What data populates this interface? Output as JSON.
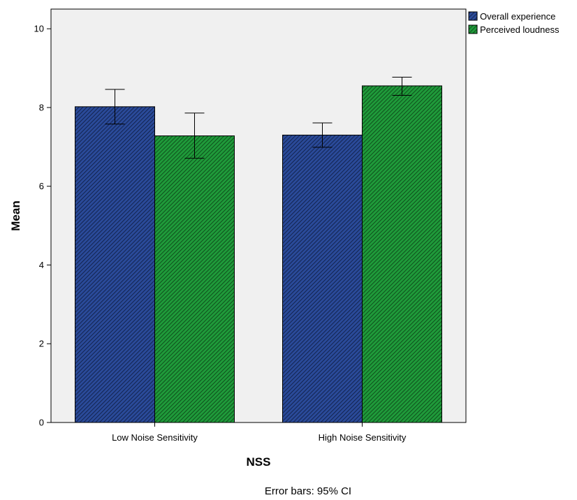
{
  "chart_data": {
    "type": "bar",
    "xlabel": "NSS",
    "ylabel": "Mean",
    "ylim": [
      0,
      10.5
    ],
    "yticks": [
      0,
      2,
      4,
      6,
      8,
      10
    ],
    "categories": [
      "Low Noise Sensitivity",
      "High Noise Sensitivity"
    ],
    "series": [
      {
        "name": "Overall experience",
        "color": "#2a4a99",
        "values": [
          8.02,
          7.3
        ],
        "ci_low": [
          7.58,
          6.99
        ],
        "ci_high": [
          8.46,
          7.61
        ]
      },
      {
        "name": "Perceived loudness",
        "color": "#1f9a3a",
        "values": [
          7.28,
          8.55
        ],
        "ci_low": [
          6.71,
          8.31
        ],
        "ci_high": [
          7.86,
          8.77
        ]
      }
    ],
    "legend_position": "top-right",
    "pattern": "diagonal-hatch",
    "grid": false,
    "background": "#f0f0f0",
    "footnote": "Error bars: 95% CI"
  }
}
